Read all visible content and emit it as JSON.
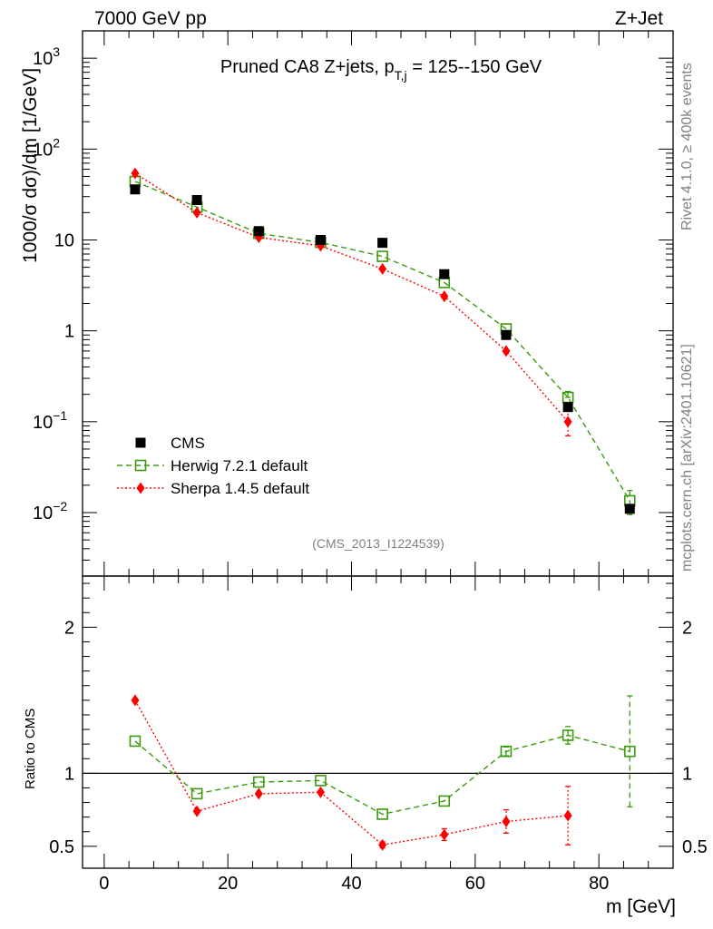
{
  "header": {
    "left_label": "7000 GeV pp",
    "right_label": "Z+Jet"
  },
  "side_labels": {
    "rivet": "Rivet 4.1.0, ≥ 400k events",
    "mcplots": "mcplots.cern.ch [arXiv:2401.10621]"
  },
  "analysis_id": "(CMS_2013_I1224539)",
  "chart_data": [
    {
      "type": "scatter",
      "panel": "main",
      "title_main": "Pruned CA8 Z+jets, p",
      "title_sub": "T,j",
      "title_rest": " = 125--150 GeV",
      "ylabel": "1000/σ   dσ)/dm [1/GeV]",
      "yscale": "log",
      "ylim": [
        0.002,
        2000
      ],
      "xlim": [
        -3.5,
        92
      ],
      "y_ticks": [
        {
          "value": 1000,
          "label": "10",
          "exp": "3"
        },
        {
          "value": 100,
          "label": "10",
          "exp": "2"
        },
        {
          "value": 10,
          "label": "10",
          "exp": ""
        },
        {
          "value": 1,
          "label": "1",
          "exp": ""
        },
        {
          "value": 0.1,
          "label": "10",
          "exp": "−1"
        },
        {
          "value": 0.01,
          "label": "10",
          "exp": "−2"
        }
      ],
      "x": [
        5,
        15,
        25,
        35,
        45,
        55,
        65,
        75,
        85
      ],
      "series": [
        {
          "name": "CMS",
          "color": "#000000",
          "marker": "square-filled",
          "values": [
            36,
            27.5,
            12.5,
            10.0,
            9.3,
            4.2,
            0.9,
            0.145,
            0.011
          ]
        },
        {
          "name": "Herwig 7.2.1 default",
          "color": "#3a9a0e",
          "marker": "square-open",
          "line": "dashed",
          "values": [
            44,
            23,
            11.8,
            9.4,
            6.6,
            3.4,
            1.05,
            0.185,
            0.0135
          ],
          "err_low": [
            0,
            0,
            0,
            0,
            0,
            0,
            0,
            0,
            0.004
          ],
          "err_high": [
            0,
            0,
            0,
            0,
            0,
            0,
            0,
            0.03,
            0.004
          ]
        },
        {
          "name": "Sherpa 1.4.5 default",
          "color": "#ff0000",
          "marker": "diamond",
          "line": "dotted",
          "values": [
            54,
            20,
            10.7,
            8.6,
            4.8,
            2.4,
            0.6,
            0.1,
            null
          ],
          "err_low": [
            0,
            0,
            0,
            0,
            0,
            0,
            0,
            0.03,
            0
          ],
          "err_high": [
            0,
            0,
            0,
            0,
            0,
            0,
            0,
            0.03,
            0
          ]
        }
      ],
      "legend_position": "lower-left"
    },
    {
      "type": "line",
      "panel": "ratio",
      "ylabel": "Ratio to CMS",
      "xlabel": "m [GeV]",
      "ylim": [
        0.35,
        2.35
      ],
      "xlim": [
        -3.5,
        92
      ],
      "reference": 1,
      "y_ticks": [
        {
          "value": 0.5,
          "label": "0.5"
        },
        {
          "value": 1,
          "label": "1"
        },
        {
          "value": 2,
          "label": "2"
        }
      ],
      "x_ticks": [
        {
          "value": 0,
          "label": "0"
        },
        {
          "value": 20,
          "label": "20"
        },
        {
          "value": 40,
          "label": "40"
        },
        {
          "value": 60,
          "label": "60"
        },
        {
          "value": 80,
          "label": "80"
        }
      ],
      "x": [
        5,
        15,
        25,
        35,
        45,
        55,
        65,
        75,
        85
      ],
      "series": [
        {
          "name": "Herwig 7.2.1 default",
          "color": "#3a9a0e",
          "marker": "square-open",
          "line": "dashed",
          "values": [
            1.22,
            0.86,
            0.94,
            0.95,
            0.72,
            0.81,
            1.15,
            1.26,
            1.15
          ],
          "err_low": [
            0,
            0,
            0,
            0,
            0,
            0,
            0.03,
            0.06,
            0.38
          ],
          "err_high": [
            0,
            0,
            0,
            0,
            0,
            0,
            0.03,
            0.06,
            0.38
          ]
        },
        {
          "name": "Sherpa 1.4.5 default",
          "color": "#ff0000",
          "marker": "diamond",
          "line": "dotted",
          "values": [
            1.5,
            0.74,
            0.86,
            0.87,
            0.51,
            0.58,
            0.67,
            0.71,
            null
          ],
          "err_low": [
            0,
            0,
            0,
            0,
            0.02,
            0.04,
            0.08,
            0.2,
            0
          ],
          "err_high": [
            0,
            0,
            0,
            0,
            0.02,
            0.04,
            0.08,
            0.2,
            0
          ]
        }
      ]
    }
  ]
}
